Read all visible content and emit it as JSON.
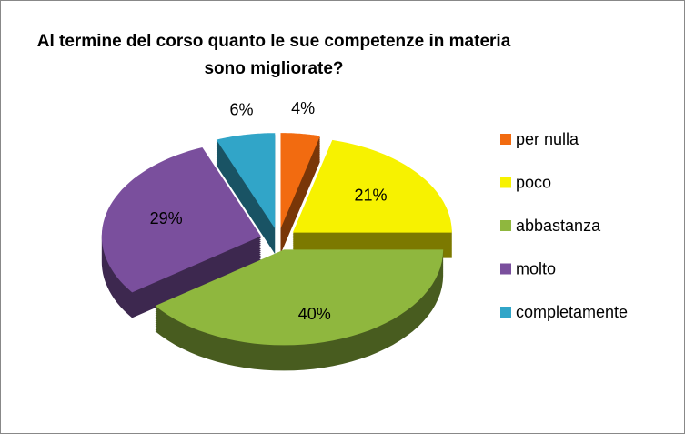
{
  "chart_data": {
    "type": "pie",
    "title": "Al termine del corso quanto le sue competenze in materia sono migliorate?",
    "categories": [
      "per nulla",
      "poco",
      "abbastanza",
      "molto",
      "completamente"
    ],
    "values": [
      4,
      21,
      40,
      29,
      6
    ],
    "value_labels": [
      "4%",
      "21%",
      "40%",
      "29%",
      "6%"
    ],
    "colors": [
      "#f26b10",
      "#f7f200",
      "#8fb73e",
      "#7a4f9d",
      "#31a5c8"
    ],
    "legend": "right",
    "exploded": true,
    "3d": true
  }
}
